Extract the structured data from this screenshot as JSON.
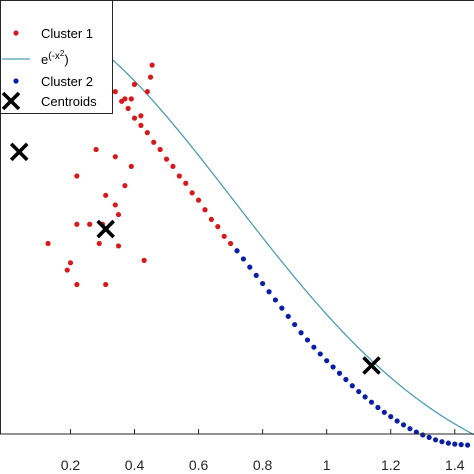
{
  "chart_data": {
    "type": "scatter",
    "title": "",
    "xlabel": "",
    "ylabel": "",
    "xlim": [
      -0.02,
      1.46
    ],
    "ylim": [
      0.12,
      1.02
    ],
    "grid": false,
    "legend_placement": "top-left",
    "x_ticks": [
      0.2,
      0.4,
      0.6,
      0.8,
      1,
      1.2,
      1.4
    ],
    "x_tick_labels": [
      "0.2",
      "0.4",
      "0.6",
      "0.8",
      "1",
      "1.2",
      "1.4"
    ],
    "legend": [
      {
        "label": "Cluster 1",
        "marker": "dot",
        "color": "#d7191c"
      },
      {
        "label": "e^(-x^2)",
        "marker": "line",
        "color": "#4f9db3"
      },
      {
        "label": "Cluster 2",
        "marker": "dot",
        "color": "#0a1fa8"
      },
      {
        "label": "Centroids",
        "marker": "x",
        "color": "#000000"
      }
    ],
    "series": [
      {
        "name": "Cluster 1",
        "type": "scatter",
        "color": "#d7191c",
        "points": [
          [
            0.26,
            0.905
          ],
          [
            0.28,
            0.88
          ],
          [
            0.3,
            0.865
          ],
          [
            0.32,
            0.845
          ],
          [
            0.34,
            0.83
          ],
          [
            0.36,
            0.81
          ],
          [
            0.38,
            0.795
          ],
          [
            0.4,
            0.775
          ],
          [
            0.42,
            0.76
          ],
          [
            0.44,
            0.745
          ],
          [
            0.46,
            0.725
          ],
          [
            0.48,
            0.71
          ],
          [
            0.5,
            0.69
          ],
          [
            0.52,
            0.675
          ],
          [
            0.54,
            0.655
          ],
          [
            0.56,
            0.64
          ],
          [
            0.58,
            0.62
          ],
          [
            0.6,
            0.605
          ],
          [
            0.62,
            0.585
          ],
          [
            0.64,
            0.565
          ],
          [
            0.66,
            0.55
          ],
          [
            0.68,
            0.53
          ],
          [
            0.7,
            0.515
          ],
          [
            0.4,
            0.845
          ],
          [
            0.455,
            0.885
          ],
          [
            0.45,
            0.86
          ],
          [
            0.44,
            0.83
          ],
          [
            0.24,
            0.83
          ],
          [
            0.37,
            0.815
          ],
          [
            0.39,
            0.815
          ],
          [
            0.24,
            0.79
          ],
          [
            0.42,
            0.78
          ],
          [
            0.28,
            0.71
          ],
          [
            0.34,
            0.695
          ],
          [
            0.39,
            0.675
          ],
          [
            0.22,
            0.655
          ],
          [
            0.37,
            0.635
          ],
          [
            0.31,
            0.615
          ],
          [
            0.34,
            0.595
          ],
          [
            0.35,
            0.575
          ],
          [
            0.3,
            0.555
          ],
          [
            0.26,
            0.555
          ],
          [
            0.29,
            0.515
          ],
          [
            0.35,
            0.51
          ],
          [
            0.22,
            0.555
          ],
          [
            0.2,
            0.475
          ],
          [
            0.19,
            0.46
          ],
          [
            0.13,
            0.515
          ],
          [
            0.22,
            0.43
          ],
          [
            0.43,
            0.48
          ],
          [
            0.31,
            0.43
          ]
        ]
      },
      {
        "name": "Cluster 2",
        "type": "scatter",
        "color": "#0a1fa8",
        "points": [
          [
            0.72,
            0.5
          ],
          [
            0.74,
            0.483
          ],
          [
            0.76,
            0.466
          ],
          [
            0.78,
            0.449
          ],
          [
            0.8,
            0.432
          ],
          [
            0.82,
            0.415
          ],
          [
            0.84,
            0.398
          ],
          [
            0.86,
            0.381
          ],
          [
            0.88,
            0.364
          ],
          [
            0.9,
            0.347
          ],
          [
            0.92,
            0.33
          ],
          [
            0.94,
            0.315
          ],
          [
            0.96,
            0.3
          ],
          [
            0.98,
            0.286
          ],
          [
            1.0,
            0.272
          ],
          [
            1.02,
            0.259
          ],
          [
            1.04,
            0.246
          ],
          [
            1.06,
            0.233
          ],
          [
            1.08,
            0.22
          ],
          [
            1.1,
            0.208
          ],
          [
            1.12,
            0.197
          ],
          [
            1.14,
            0.186
          ],
          [
            1.16,
            0.175
          ],
          [
            1.18,
            0.165
          ],
          [
            1.2,
            0.156
          ],
          [
            1.22,
            0.147
          ],
          [
            1.24,
            0.139
          ],
          [
            1.26,
            0.131
          ],
          [
            1.28,
            0.124
          ],
          [
            1.3,
            0.118
          ],
          [
            1.32,
            0.113
          ],
          [
            1.34,
            0.108
          ],
          [
            1.36,
            0.104
          ],
          [
            1.38,
            0.101
          ],
          [
            1.4,
            0.099
          ],
          [
            1.42,
            0.098
          ],
          [
            1.44,
            0.097
          ]
        ]
      },
      {
        "name": "e^(-x^2)",
        "type": "line",
        "color": "#4f9db3",
        "function": "exp(-x^2)",
        "x_range": [
          -0.02,
          1.46
        ]
      },
      {
        "name": "Centroids",
        "type": "scatter",
        "marker": "x",
        "color": "#000000",
        "points": [
          [
            0.31,
            0.545
          ],
          [
            1.14,
            0.262
          ],
          [
            0.04,
            0.705
          ]
        ]
      }
    ]
  }
}
